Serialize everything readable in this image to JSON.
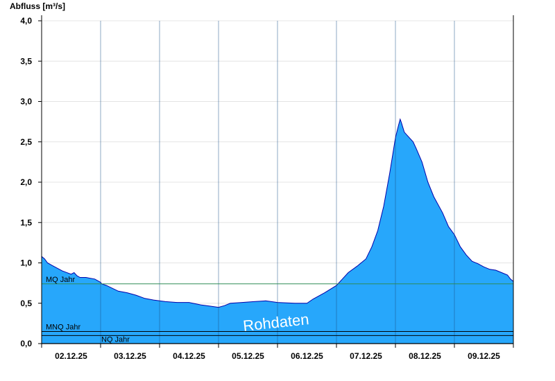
{
  "chart_data": {
    "type": "area",
    "ylabel": "Abfluss [m³/s]",
    "ylim": [
      0,
      4.0
    ],
    "yticks": [
      "0,0",
      "0,5",
      "1,0",
      "1,5",
      "2,0",
      "2,5",
      "3,0",
      "3,5",
      "4,0"
    ],
    "xlim": [
      0,
      8
    ],
    "xticks": [
      "02.12.25",
      "03.12.25",
      "04.12.25",
      "05.12.25",
      "06.12.25",
      "07.12.25",
      "08.12.25",
      "09.12.25"
    ],
    "grid": "horizontal",
    "fill_color": "#27a7fb",
    "line_color": "#0000aa",
    "series": [
      {
        "x": [
          0.0,
          0.05,
          0.1,
          0.2,
          0.35,
          0.5,
          0.55,
          0.6,
          0.65,
          0.75,
          0.9,
          1.0,
          1.02,
          1.1,
          1.3,
          1.45,
          1.6,
          1.75,
          1.9,
          2.1,
          2.3,
          2.5,
          2.7,
          2.8,
          3.0,
          3.1,
          3.2,
          3.4,
          3.6,
          3.8,
          4.0,
          4.3,
          4.5,
          4.6,
          4.8,
          5.0,
          5.1,
          5.2,
          5.35,
          5.5,
          5.6,
          5.7,
          5.8,
          5.9,
          6.0,
          6.05,
          6.08,
          6.1,
          6.15,
          6.2,
          6.3,
          6.35,
          6.45,
          6.55,
          6.65,
          6.8,
          6.9,
          7.0,
          7.1,
          7.2,
          7.3,
          7.4,
          7.5,
          7.6,
          7.7,
          7.8,
          7.9,
          7.95,
          8.0
        ],
        "y": [
          1.08,
          1.05,
          1.0,
          0.96,
          0.9,
          0.86,
          0.88,
          0.84,
          0.82,
          0.82,
          0.8,
          0.76,
          0.74,
          0.72,
          0.65,
          0.63,
          0.6,
          0.56,
          0.54,
          0.52,
          0.51,
          0.51,
          0.48,
          0.47,
          0.45,
          0.47,
          0.5,
          0.51,
          0.52,
          0.53,
          0.51,
          0.5,
          0.5,
          0.55,
          0.63,
          0.72,
          0.8,
          0.88,
          0.96,
          1.05,
          1.2,
          1.4,
          1.7,
          2.1,
          2.55,
          2.7,
          2.78,
          2.74,
          2.62,
          2.58,
          2.5,
          2.42,
          2.25,
          2.0,
          1.82,
          1.62,
          1.45,
          1.35,
          1.2,
          1.1,
          1.02,
          0.99,
          0.95,
          0.92,
          0.91,
          0.88,
          0.85,
          0.8,
          0.77
        ]
      }
    ],
    "reference_lines": [
      {
        "label": "MQ Jahr",
        "value": 0.74,
        "color": "#2e8b57"
      },
      {
        "label": "MNQ Jahr",
        "value": 0.15,
        "color": "#000000"
      },
      {
        "label": "NQ Jahr",
        "value": 0.1,
        "color": "#000000"
      }
    ],
    "watermark": "Rohdaten"
  }
}
